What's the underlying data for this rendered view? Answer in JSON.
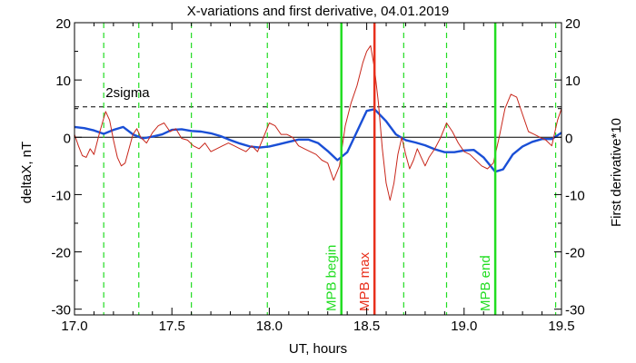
{
  "chart_data": {
    "type": "line",
    "title": "X-variations and first derivative, 04.01.2019",
    "xlabel": "UT, hours",
    "ylabel_left": "deltaX, nT",
    "ylabel_right": "First derivative*10",
    "xlim": [
      17.0,
      19.5
    ],
    "ylim": [
      -31,
      20
    ],
    "x_ticks": [
      17.0,
      17.5,
      18.0,
      18.5,
      19.0,
      19.5
    ],
    "x_tick_labels": [
      "17.0",
      "17.5",
      "18.0",
      "18.5",
      "19.0",
      "19.5"
    ],
    "y_ticks": [
      -30,
      -20,
      -10,
      0,
      10,
      20
    ],
    "y_tick_labels": [
      "-30",
      "-20",
      "-10",
      "0",
      "10",
      "20"
    ],
    "threshold": {
      "label": "2sigma",
      "value": 5.3
    },
    "colors": {
      "deltaX": "#1a4fd6",
      "derivative": "#c8261a",
      "green": "#22dd22",
      "red": "#e8301c"
    },
    "dashed_green_lines_x": [
      17.15,
      17.33,
      17.6,
      17.99,
      18.69,
      18.91,
      19.47
    ],
    "markers": [
      {
        "label": "MPB begin",
        "x": 18.37,
        "color": "#22dd22"
      },
      {
        "label": "MPB max",
        "x": 18.54,
        "color": "#e8301c"
      },
      {
        "label": "MPB end",
        "x": 19.16,
        "color": "#22dd22"
      }
    ],
    "series": [
      {
        "name": "deltaX",
        "color": "#1a4fd6",
        "x": [
          17.0,
          17.05,
          17.1,
          17.15,
          17.2,
          17.25,
          17.3,
          17.35,
          17.4,
          17.45,
          17.5,
          17.55,
          17.6,
          17.65,
          17.7,
          17.75,
          17.8,
          17.85,
          17.9,
          17.95,
          18.0,
          18.05,
          18.1,
          18.15,
          18.2,
          18.25,
          18.3,
          18.35,
          18.4,
          18.45,
          18.5,
          18.54,
          18.6,
          18.65,
          18.7,
          18.75,
          18.8,
          18.85,
          18.9,
          18.95,
          19.0,
          19.05,
          19.1,
          19.16,
          19.2,
          19.25,
          19.3,
          19.35,
          19.4,
          19.45,
          19.5
        ],
        "y": [
          1.8,
          1.6,
          1.2,
          0.6,
          1.3,
          1.8,
          0.5,
          -0.2,
          0.1,
          0.5,
          1.3,
          1.4,
          1.1,
          1.0,
          0.7,
          0.2,
          -0.5,
          -1.1,
          -1.6,
          -1.8,
          -1.6,
          -1.2,
          -0.8,
          -0.4,
          -0.4,
          -1.0,
          -2.4,
          -4.0,
          -2.6,
          1.0,
          4.6,
          4.9,
          2.8,
          0.5,
          -0.5,
          -0.9,
          -1.4,
          -2.1,
          -2.6,
          -2.6,
          -2.3,
          -2.2,
          -3.5,
          -6.0,
          -5.6,
          -3.0,
          -1.6,
          -0.8,
          -0.3,
          -0.3,
          0.8
        ]
      },
      {
        "name": "First derivative*10",
        "color": "#c8261a",
        "x": [
          17.0,
          17.02,
          17.04,
          17.06,
          17.08,
          17.1,
          17.13,
          17.16,
          17.18,
          17.2,
          17.22,
          17.24,
          17.26,
          17.28,
          17.3,
          17.32,
          17.34,
          17.37,
          17.4,
          17.43,
          17.46,
          17.49,
          17.52,
          17.55,
          17.58,
          17.61,
          17.64,
          17.67,
          17.7,
          17.73,
          17.76,
          17.79,
          17.82,
          17.85,
          17.88,
          17.91,
          17.94,
          17.97,
          18.0,
          18.03,
          18.06,
          18.09,
          18.12,
          18.15,
          18.18,
          18.21,
          18.24,
          18.27,
          18.3,
          18.33,
          18.36,
          18.39,
          18.42,
          18.45,
          18.48,
          18.5,
          18.52,
          18.54,
          18.56,
          18.58,
          18.6,
          18.62,
          18.64,
          18.66,
          18.68,
          18.7,
          18.72,
          18.74,
          18.76,
          18.78,
          18.8,
          18.82,
          18.85,
          18.88,
          18.91,
          18.94,
          18.97,
          19.0,
          19.03,
          19.06,
          19.09,
          19.12,
          19.15,
          19.18,
          19.21,
          19.24,
          19.27,
          19.3,
          19.33,
          19.36,
          19.39,
          19.42,
          19.45,
          19.48,
          19.5
        ],
        "y": [
          0.5,
          -1.5,
          -3.2,
          -3.5,
          -2.0,
          -3.0,
          1.0,
          4.5,
          3.0,
          -0.5,
          -3.5,
          -5.0,
          -4.5,
          -2.0,
          0.5,
          1.5,
          0.0,
          -1.0,
          0.8,
          2.0,
          2.5,
          1.0,
          1.5,
          -0.2,
          -0.5,
          -1.5,
          -2.0,
          -1.0,
          -2.5,
          -2.0,
          -1.5,
          -1.0,
          -1.5,
          -2.0,
          -2.5,
          -1.5,
          -2.5,
          0.0,
          2.5,
          2.0,
          0.5,
          0.5,
          0.0,
          -1.5,
          -2.0,
          -2.5,
          -3.0,
          -4.0,
          -4.5,
          -7.5,
          -5.0,
          2.0,
          6.0,
          9.0,
          13.0,
          15.0,
          16.0,
          12.0,
          6.0,
          -2.0,
          -8.0,
          -11.0,
          -8.0,
          -3.0,
          0.0,
          -3.0,
          -5.5,
          -4.0,
          -2.0,
          -3.5,
          -5.0,
          -3.5,
          -2.0,
          0.0,
          2.5,
          1.0,
          -1.0,
          -2.5,
          -3.0,
          -4.0,
          -5.0,
          -5.5,
          -4.5,
          0.0,
          5.0,
          7.5,
          7.0,
          4.0,
          1.0,
          0.5,
          0.0,
          -0.5,
          -1.5,
          3.0,
          5.0
        ]
      }
    ]
  }
}
